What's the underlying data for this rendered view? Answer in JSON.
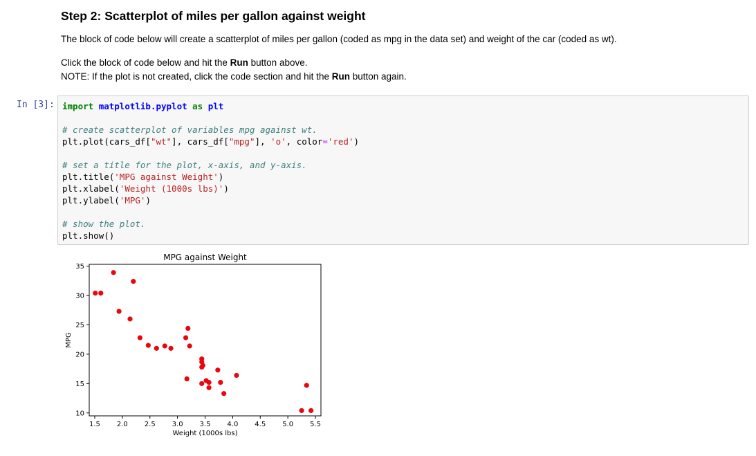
{
  "markdown": {
    "heading": "Step 2: Scatterplot of miles per gallon against weight",
    "para1": "The block of code below will create a scatterplot of miles per gallon (coded as mpg in the data set) and weight of the car (coded as wt).",
    "para2_prefix": "Click the block of code below and hit the ",
    "para2_bold": "Run",
    "para2_suffix": " button above.",
    "para3_prefix": "NOTE: If the plot is not created, click the code section and hit the ",
    "para3_bold": "Run",
    "para3_suffix": " button again."
  },
  "code_cell": {
    "prompt": "In [3]:",
    "lines": [
      [
        {
          "t": "import",
          "c": "kw"
        },
        {
          "t": " "
        },
        {
          "t": "matplotlib.pyplot",
          "c": "mod"
        },
        {
          "t": " "
        },
        {
          "t": "as",
          "c": "kw"
        },
        {
          "t": " "
        },
        {
          "t": "plt",
          "c": "mod"
        }
      ],
      [],
      [
        {
          "t": "# create scatterplot of variables mpg against wt.",
          "c": "cm"
        }
      ],
      [
        {
          "t": "plt.plot(cars_df["
        },
        {
          "t": "\"wt\"",
          "c": "st"
        },
        {
          "t": "], cars_df["
        },
        {
          "t": "\"mpg\"",
          "c": "st"
        },
        {
          "t": "], "
        },
        {
          "t": "'o'",
          "c": "st"
        },
        {
          "t": ", color"
        },
        {
          "t": "=",
          "c": "op"
        },
        {
          "t": "'red'",
          "c": "st"
        },
        {
          "t": ")"
        }
      ],
      [],
      [
        {
          "t": "# set a title for the plot, x-axis, and y-axis.",
          "c": "cm"
        }
      ],
      [
        {
          "t": "plt.title("
        },
        {
          "t": "'MPG against Weight'",
          "c": "st"
        },
        {
          "t": ")"
        }
      ],
      [
        {
          "t": "plt.xlabel("
        },
        {
          "t": "'Weight (1000s lbs)'",
          "c": "st"
        },
        {
          "t": ")"
        }
      ],
      [
        {
          "t": "plt.ylabel("
        },
        {
          "t": "'MPG'",
          "c": "st"
        },
        {
          "t": ")"
        }
      ],
      [],
      [
        {
          "t": "# show the plot.",
          "c": "cm"
        }
      ],
      [
        {
          "t": "plt.show()"
        }
      ]
    ]
  },
  "chart_data": {
    "type": "scatter",
    "title": "MPG against Weight",
    "xlabel": "Weight (1000s lbs)",
    "ylabel": "MPG",
    "xlim": [
      1.4,
      5.6
    ],
    "ylim": [
      9.5,
      35.3
    ],
    "xticks": [
      1.5,
      2.0,
      2.5,
      3.0,
      3.5,
      4.0,
      4.5,
      5.0,
      5.5
    ],
    "xtick_labels": [
      "1.5",
      "2.0",
      "2.5",
      "3.0",
      "3.5",
      "4.0",
      "4.5",
      "5.0",
      "5.5"
    ],
    "yticks": [
      10,
      15,
      20,
      25,
      30,
      35
    ],
    "ytick_labels": [
      "10",
      "15",
      "20",
      "25",
      "30",
      "35"
    ],
    "grid": false,
    "color": "#e8070e",
    "series": [
      {
        "points": [
          [
            1.51,
            30.4
          ],
          [
            1.61,
            30.4
          ],
          [
            1.84,
            33.9
          ],
          [
            1.94,
            27.3
          ],
          [
            2.14,
            26.0
          ],
          [
            2.2,
            32.4
          ],
          [
            2.32,
            22.8
          ],
          [
            2.47,
            21.5
          ],
          [
            2.62,
            21.0
          ],
          [
            2.77,
            21.4
          ],
          [
            2.88,
            21.0
          ],
          [
            3.15,
            22.8
          ],
          [
            3.17,
            15.8
          ],
          [
            3.19,
            24.4
          ],
          [
            3.22,
            21.4
          ],
          [
            3.44,
            19.2
          ],
          [
            3.44,
            18.7
          ],
          [
            3.44,
            17.8
          ],
          [
            3.44,
            15.0
          ],
          [
            3.46,
            18.1
          ],
          [
            3.52,
            15.5
          ],
          [
            3.57,
            15.2
          ],
          [
            3.57,
            14.3
          ],
          [
            3.73,
            17.3
          ],
          [
            3.78,
            15.2
          ],
          [
            3.84,
            13.3
          ],
          [
            4.07,
            16.4
          ],
          [
            5.25,
            10.4
          ],
          [
            5.34,
            14.7
          ],
          [
            5.42,
            10.4
          ]
        ]
      }
    ]
  }
}
